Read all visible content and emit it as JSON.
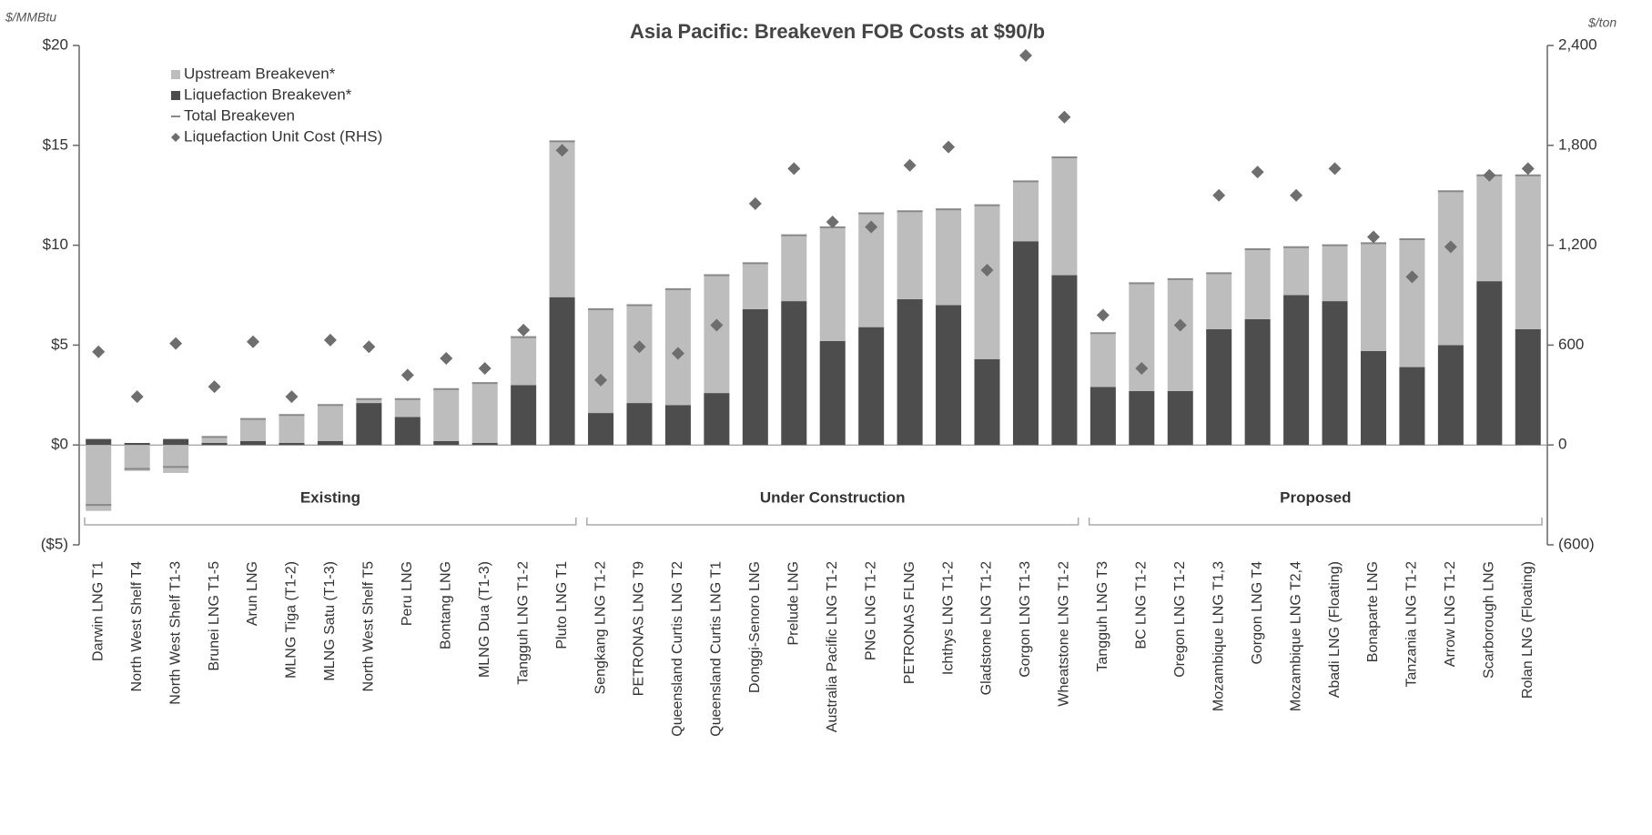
{
  "chart_data": {
    "type": "stacked-bar",
    "title": "Asia Pacific: Breakeven FOB Costs at $90/b",
    "y_axis_label": "$/MMBtu",
    "y2_axis_label": "$/ton",
    "groups": [
      {
        "label": "Existing",
        "categories": [
          "Darwin LNG T1",
          "North West Shelf T4",
          "North West Shelf T1-3",
          "Brunei LNG T1-5",
          "Arun LNG",
          "MLNG Tiga (T1-2)",
          "MLNG Satu (T1-3)",
          "North West Shelf T5",
          "Peru LNG",
          "Bontang LNG",
          "MLNG Dua (T1-3)",
          "Tangguh LNG T1-2",
          "Pluto LNG T1"
        ]
      },
      {
        "label": "Under Construction",
        "categories": [
          "Sengkang LNG T1-2",
          "PETRONAS LNG T9",
          "Queensland Curtis LNG T2",
          "Queensland Curtis LNG T1",
          "Donggi-Senoro LNG",
          "Prelude LNG",
          "Australia Pacific LNG T1-2",
          "PNG LNG T1-2",
          "PETRONAS FLNG",
          "Ichthys LNG T1-2",
          "Gladstone LNG T1-2",
          "Gorgon LNG T1-3",
          "Wheatstone LNG T1-2"
        ]
      },
      {
        "label": "Proposed",
        "categories": [
          "Tangguh LNG T3",
          "BC LNG T1-2",
          "Oregon LNG T1-2",
          "Mozambique LNG T1,3",
          "Gorgon LNG T4",
          "Mozambique LNG T2,4",
          "Abadi LNG (Floating)",
          "Bonaparte LNG",
          "Tanzania LNG T1-2",
          "Arrow LNG T1-2",
          "Scarborough LNG",
          "Rolan LNG (Floating)"
        ]
      }
    ],
    "series": [
      {
        "name": "Upstream Breakeven*",
        "kind": "bar",
        "color": "#bdbdbd",
        "values": [
          -3.3,
          -1.3,
          -1.4,
          0.3,
          1.1,
          1.4,
          1.8,
          0.2,
          0.9,
          2.6,
          3.0,
          2.4,
          7.8,
          5.2,
          4.9,
          5.8,
          5.9,
          2.3,
          3.3,
          5.7,
          5.7,
          4.4,
          4.8,
          7.7,
          3.0,
          5.9,
          2.7,
          5.4,
          5.6,
          2.8,
          3.5,
          2.4,
          2.8,
          5.4,
          6.4,
          7.7,
          5.3,
          7.7
        ]
      },
      {
        "name": "Liquefaction Breakeven*",
        "kind": "bar",
        "color": "#4d4d4d",
        "values": [
          0.3,
          0.1,
          0.3,
          0.1,
          0.2,
          0.1,
          0.2,
          2.1,
          1.4,
          0.2,
          0.1,
          3.0,
          7.4,
          1.6,
          2.1,
          2.0,
          2.6,
          6.8,
          7.2,
          5.2,
          5.9,
          7.3,
          7.0,
          4.3,
          10.2,
          8.5,
          2.9,
          2.7,
          2.7,
          5.8,
          6.3,
          7.5,
          7.2,
          4.7,
          3.9,
          5.0,
          8.2,
          5.8
        ]
      },
      {
        "name": "Total Breakeven",
        "kind": "dash",
        "color": "#888888",
        "values": [
          -3.0,
          -1.2,
          -1.1,
          0.4,
          1.3,
          1.5,
          2.0,
          2.3,
          2.3,
          2.8,
          3.1,
          5.4,
          15.2,
          6.8,
          7.0,
          7.8,
          8.5,
          9.1,
          10.5,
          10.9,
          11.6,
          11.7,
          11.8,
          12.0,
          13.2,
          14.4,
          5.6,
          8.1,
          8.3,
          8.6,
          9.8,
          9.9,
          10.0,
          10.1,
          10.3,
          12.7,
          13.5,
          13.5
        ]
      },
      {
        "name": "Liquefaction Unit Cost (RHS)",
        "kind": "diamond",
        "axis": "y2",
        "color": "#6e6e6e",
        "values": [
          560,
          290,
          610,
          350,
          620,
          290,
          630,
          590,
          420,
          520,
          460,
          690,
          1770,
          390,
          590,
          550,
          720,
          1450,
          1660,
          1340,
          1310,
          1680,
          1790,
          1050,
          2340,
          1970,
          780,
          460,
          720,
          1500,
          1640,
          1500,
          1660,
          1250,
          1010,
          1190,
          1620,
          1660
        ]
      }
    ],
    "ylim": [
      -5,
      20
    ],
    "yticks": [
      {
        "value": -5,
        "label": "($5)"
      },
      {
        "value": 0,
        "label": "$0"
      },
      {
        "value": 5,
        "label": "$5"
      },
      {
        "value": 10,
        "label": "$10"
      },
      {
        "value": 15,
        "label": "$15"
      },
      {
        "value": 20,
        "label": "$20"
      }
    ],
    "y2lim": [
      -600,
      2400
    ],
    "y2ticks": [
      {
        "value": -600,
        "label": "(600)"
      },
      0,
      {
        "value": 600,
        "label": "600"
      },
      {
        "value": 1200,
        "label": "1,200"
      },
      {
        "value": 1800,
        "label": "1,800"
      },
      {
        "value": 2400,
        "label": "2,400"
      }
    ],
    "legend": "top-left"
  }
}
